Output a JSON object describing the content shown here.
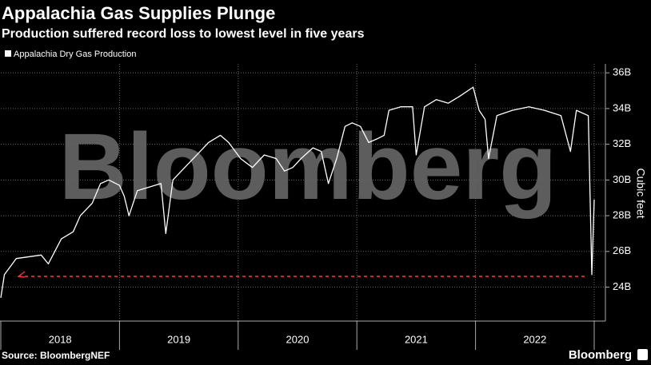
{
  "chart_data": {
    "type": "line",
    "title": "Appalachia Gas Supplies Plunge",
    "subtitle": "Production suffered record loss to lowest level in five years",
    "y_label": "Cubic feet",
    "watermark": "Bloomberg",
    "source": "Source: BloombergNEF",
    "brand": "Bloomberg",
    "xlim": [
      2018,
      2023
    ],
    "xticks": [
      {
        "value": 2018.5,
        "label": "2018"
      },
      {
        "value": 2019.5,
        "label": "2019"
      },
      {
        "value": 2020.5,
        "label": "2020"
      },
      {
        "value": 2021.5,
        "label": "2021"
      },
      {
        "value": 2022.5,
        "label": "2022"
      }
    ],
    "ylim": [
      22.1,
      36.5
    ],
    "yticks": [
      {
        "value": 24,
        "label": "24B"
      },
      {
        "value": 26,
        "label": "26B"
      },
      {
        "value": 28,
        "label": "28B"
      },
      {
        "value": 30,
        "label": "30B"
      },
      {
        "value": 32,
        "label": "32B"
      },
      {
        "value": 34,
        "label": "34B"
      },
      {
        "value": 36,
        "label": "36B"
      }
    ],
    "grid": true,
    "reference_line": {
      "value": 24.6,
      "color": "#e8343f"
    },
    "x": [
      2018.0,
      2018.03,
      2018.13,
      2018.34,
      2018.4,
      2018.51,
      2018.61,
      2018.67,
      2018.77,
      2018.84,
      2018.91,
      2019.0,
      2019.04,
      2019.08,
      2019.15,
      2019.25,
      2019.35,
      2019.39,
      2019.45,
      2019.55,
      2019.68,
      2019.75,
      2019.85,
      2019.92,
      2020.02,
      2020.12,
      2020.22,
      2020.32,
      2020.39,
      2020.46,
      2020.53,
      2020.63,
      2020.7,
      2020.76,
      2020.83,
      2020.9,
      2020.96,
      2021.03,
      2021.1,
      2021.17,
      2021.23,
      2021.27,
      2021.37,
      2021.47,
      2021.5,
      2021.57,
      2021.67,
      2021.77,
      2021.87,
      2021.98,
      2022.03,
      2022.08,
      2022.11,
      2022.18,
      2022.31,
      2022.45,
      2022.58,
      2022.72,
      2022.8,
      2022.85,
      2022.95,
      2022.98,
      2023.0
    ],
    "series": [
      {
        "name": "Appalachia Dry Gas Production",
        "color": "#ffffff",
        "values": [
          23.4,
          24.7,
          25.6,
          25.8,
          25.3,
          26.7,
          27.1,
          28.0,
          28.7,
          29.8,
          30.0,
          29.7,
          29.1,
          28.0,
          29.4,
          29.6,
          29.8,
          27.0,
          30.0,
          30.7,
          31.6,
          32.1,
          32.5,
          32.1,
          31.2,
          30.7,
          31.4,
          31.2,
          30.5,
          30.7,
          31.2,
          31.8,
          31.6,
          29.8,
          31.2,
          33.0,
          33.2,
          33.0,
          32.1,
          32.3,
          32.5,
          33.9,
          34.1,
          34.1,
          31.4,
          34.1,
          34.5,
          34.3,
          34.7,
          35.2,
          33.9,
          33.4,
          31.2,
          33.6,
          33.9,
          34.1,
          33.9,
          33.6,
          31.6,
          33.9,
          33.6,
          24.7,
          28.9
        ]
      }
    ]
  }
}
